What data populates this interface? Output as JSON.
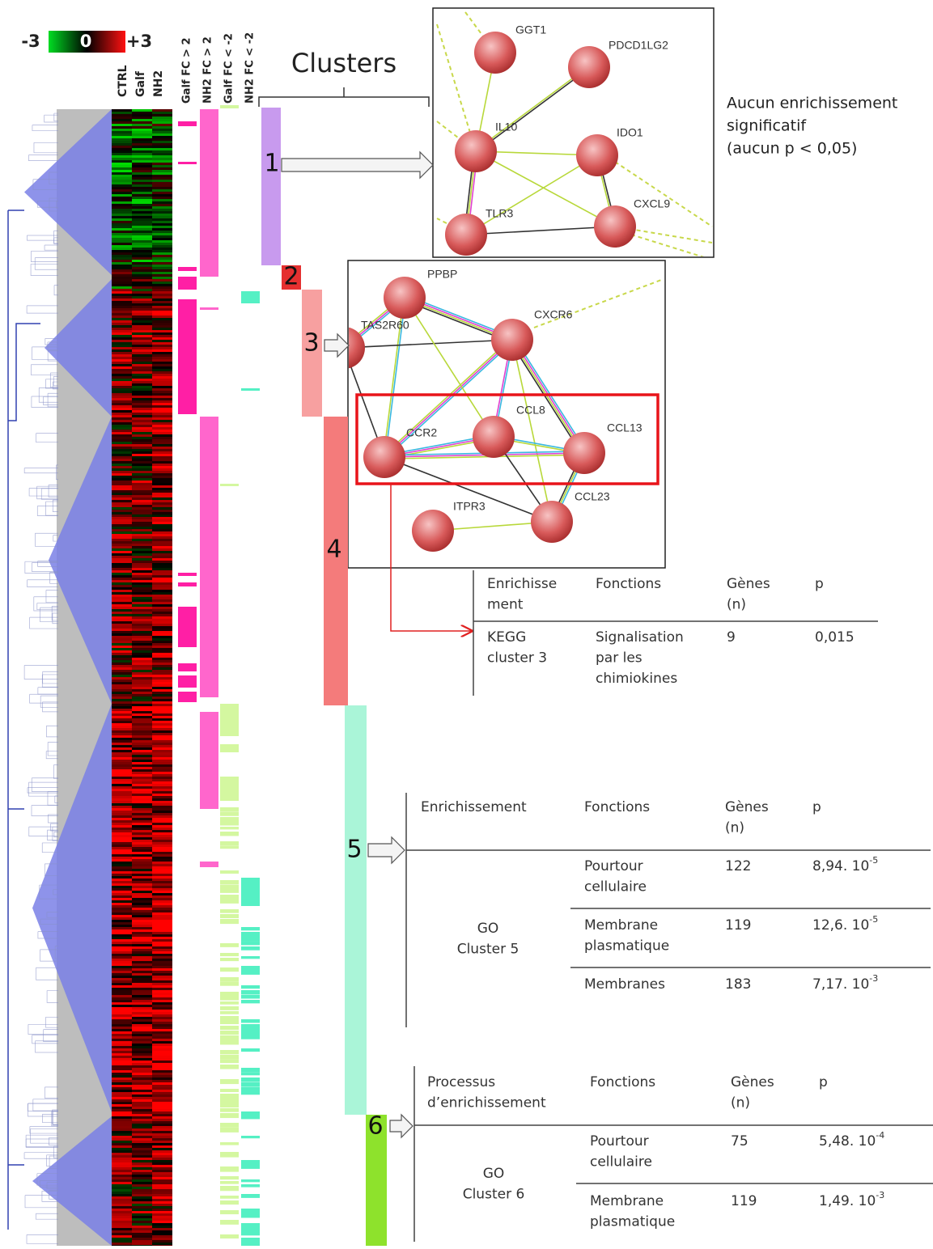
{
  "color_scale": {
    "min": "-3",
    "mid": "0",
    "max": "+3"
  },
  "heatmap_columns": [
    "CTRL",
    "Galf",
    "NH2"
  ],
  "fc_columns": [
    "Galf FC > 2",
    "NH2 FC > 2",
    "Galf FC < -2",
    "NH2 FC < -2"
  ],
  "clusters": {
    "title": "Clusters",
    "labels": [
      "1",
      "2",
      "3",
      "4",
      "5",
      "6"
    ]
  },
  "cluster1_note": [
    "Aucun enrichissement",
    "significatif",
    "(aucun p < 0,05)"
  ],
  "network1": {
    "nodes": [
      "GGT1",
      "PDCD1LG2",
      "IL10",
      "IDO1",
      "CXCL9",
      "TLR3"
    ]
  },
  "network2": {
    "nodes": [
      "PPBP",
      "CXCR6",
      "TAS2R60",
      "CCR2",
      "CCL8",
      "CCL13",
      "CCL23",
      "ITPR3"
    ]
  },
  "table_cluster3": {
    "header": [
      "Enrichisse\nment",
      "Fonctions",
      "Gènes\n(n)",
      "p"
    ],
    "rows": [
      [
        "KEGG\ncluster 3",
        "Signalisation\npar les\nchimiokines",
        "9",
        "0,015"
      ]
    ]
  },
  "table_cluster5": {
    "header": [
      "Enrichissement",
      "Fonctions",
      "Gènes\n(n)",
      "p"
    ],
    "group": "GO\nCluster 5",
    "rows": [
      {
        "function": "Pourtour\ncellulaire",
        "genes": "122",
        "p": {
          "base": "8,94. 10",
          "exp": "-5"
        }
      },
      {
        "function": "Membrane\nplasmatique",
        "genes": "119",
        "p": {
          "base": "12,6. 10",
          "exp": "-5"
        }
      },
      {
        "function": "Membranes",
        "genes": "183",
        "p": {
          "base": "7,17. 10",
          "exp": "-3"
        }
      }
    ]
  },
  "table_cluster6": {
    "header": [
      "Processus\nd’enrichissement",
      "Fonctions",
      "Gènes\n(n)",
      "p"
    ],
    "group": "GO\nCluster 6",
    "rows": [
      {
        "function": "Pourtour\ncellulaire",
        "genes": "75",
        "p": {
          "base": "5,48. 10",
          "exp": "-4"
        }
      },
      {
        "function": "Membrane\nplasmatique",
        "genes": "119",
        "p": {
          "base": "1,49. 10",
          "exp": "-3"
        }
      }
    ]
  }
}
